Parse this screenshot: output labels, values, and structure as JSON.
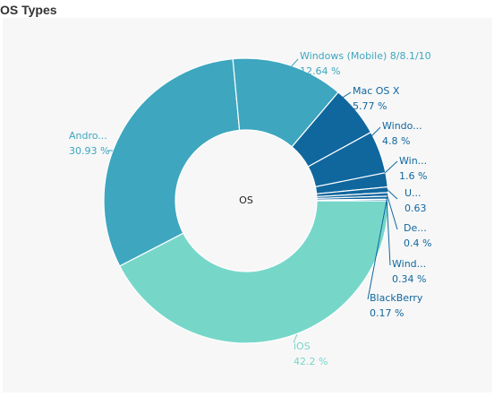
{
  "header": {
    "title": "OS Types"
  },
  "chart_data": {
    "type": "pie",
    "center_label": "OS",
    "slices": [
      {
        "name": "iOS",
        "label": "iOS",
        "value": 42.2,
        "value_text": "42.2 %",
        "color": "#76d7c9"
      },
      {
        "name": "Android",
        "label": "Andro...",
        "value": 30.93,
        "value_text": "30.93 %",
        "color": "#3ea6bf"
      },
      {
        "name": "Windows (Mobile) 8/8.1/10",
        "label": "Windows (Mobile) 8/8.1/10",
        "value": 12.64,
        "value_text": "12.64 %",
        "color": "#3ea6bf"
      },
      {
        "name": "Mac OS X",
        "label": "Mac OS X",
        "value": 5.77,
        "value_text": "5.77 %",
        "color": "#10679e"
      },
      {
        "name": "Windows",
        "label": "Windo...",
        "value": 4.8,
        "value_text": "4.8 %",
        "color": "#10679e"
      },
      {
        "name": "Win",
        "label": "Win...",
        "value": 1.6,
        "value_text": "1.6 %",
        "color": "#10679e"
      },
      {
        "name": "U",
        "label": "U...",
        "value": 0.63,
        "value_text": "0.63",
        "color": "#10679e"
      },
      {
        "name": "De",
        "label": "De...",
        "value": 0.4,
        "value_text": "0.4 %",
        "color": "#10679e"
      },
      {
        "name": "Wind",
        "label": "Wind...",
        "value": 0.34,
        "value_text": "0.34 %",
        "color": "#10679e"
      },
      {
        "name": "BlackBerry",
        "label": "BlackBerry",
        "value": 0.17,
        "value_text": "0.17 %",
        "color": "#10679e"
      }
    ]
  }
}
